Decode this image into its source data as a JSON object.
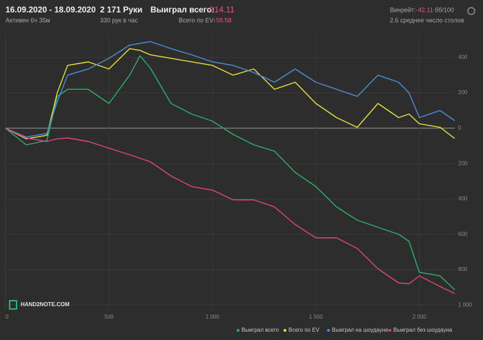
{
  "header": {
    "dates": "16.09.2020 - 18.09.2020",
    "active": "Активен 6ч 35м",
    "hands": "2 171 Руки",
    "per_hour": "330 рук в час",
    "won_label": "Выиграл всего:",
    "won_value": "-914.11",
    "ev_label": "Всего по EV:",
    "ev_value": "-58.58",
    "winrate_label": "Винрейт:",
    "winrate_value": "-42.11",
    "winrate_unit": "бб/100",
    "tables": "2.6 среднее число столов"
  },
  "logo": "HAND2NOTE.COM",
  "chart_data": {
    "type": "line",
    "x": [
      0,
      100,
      200,
      250,
      300,
      400,
      500,
      600,
      650,
      700,
      800,
      900,
      1000,
      1100,
      1200,
      1300,
      1400,
      1500,
      1600,
      1700,
      1800,
      1900,
      1950,
      2000,
      2100,
      2171
    ],
    "xlim": [
      0,
      2171
    ],
    "xticks": [
      0,
      500,
      {
        "value": 1000,
        "label": "1 000"
      },
      {
        "value": 1500,
        "label": "1 500"
      },
      {
        "value": 2000,
        "label": "2 000"
      }
    ],
    "ylim": [
      -1030,
      530
    ],
    "yticks": [
      400,
      200,
      0,
      {
        "value": -200,
        "label": "200"
      },
      {
        "value": -400,
        "label": "400"
      },
      {
        "value": -600,
        "label": "600"
      },
      {
        "value": -800,
        "label": "800"
      },
      {
        "value": -1000,
        "label": "1 000"
      }
    ],
    "grid": true,
    "series": [
      {
        "name": "Выиграл всего",
        "color": "#2fb06d",
        "values": [
          0,
          -94,
          -70,
          180,
          220,
          220,
          140,
          300,
          410,
          340,
          140,
          80,
          40,
          -35,
          -94,
          -130,
          -250,
          -330,
          -445,
          -520,
          -560,
          -600,
          -640,
          -815,
          -835,
          -914
        ]
      },
      {
        "name": "Всего по EV",
        "color": "#e8e23c",
        "values": [
          0,
          -60,
          -40,
          200,
          355,
          375,
          335,
          450,
          440,
          415,
          395,
          375,
          355,
          300,
          335,
          220,
          260,
          140,
          60,
          5,
          140,
          60,
          80,
          25,
          5,
          -58
        ]
      },
      {
        "name": "Выиграл на шоудауне",
        "color": "#4b8fd8",
        "values": [
          0,
          -50,
          -30,
          150,
          300,
          335,
          395,
          470,
          480,
          490,
          450,
          415,
          375,
          355,
          315,
          260,
          335,
          260,
          220,
          180,
          300,
          260,
          200,
          60,
          100,
          43
        ]
      },
      {
        "name": "Выиграл без шоудауна",
        "color": "#e2457b",
        "values": [
          0,
          -55,
          -75,
          -60,
          -55,
          -75,
          -113,
          -150,
          -170,
          -190,
          -270,
          -330,
          -350,
          -405,
          -405,
          -445,
          -545,
          -620,
          -620,
          -680,
          -795,
          -875,
          -880,
          -835,
          -895,
          -935
        ]
      }
    ]
  }
}
